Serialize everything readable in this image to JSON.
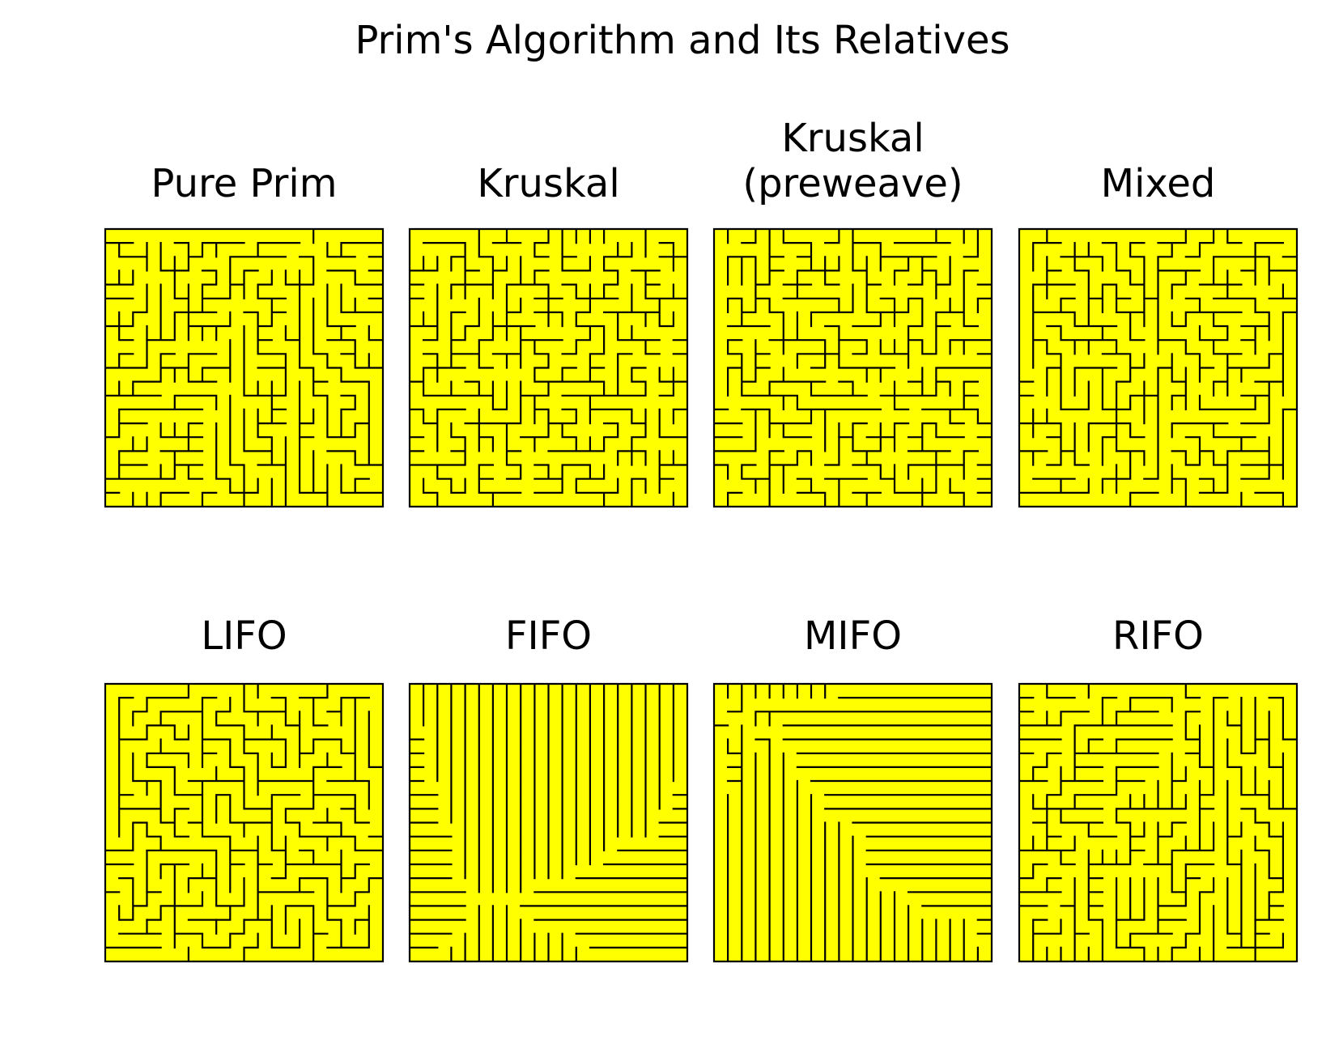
{
  "title": "Prim's Algorithm and Its Relatives",
  "panels": [
    {
      "title": [
        "Pure Prim"
      ]
    },
    {
      "title": [
        "Kruskal"
      ]
    },
    {
      "title": [
        "Kruskal",
        "(preweave)"
      ]
    },
    {
      "title": [
        "Mixed"
      ]
    },
    {
      "title": [
        "LIFO"
      ]
    },
    {
      "title": [
        "FIFO"
      ]
    },
    {
      "title": [
        "MIFO"
      ]
    },
    {
      "title": [
        "RIFO"
      ]
    }
  ]
}
